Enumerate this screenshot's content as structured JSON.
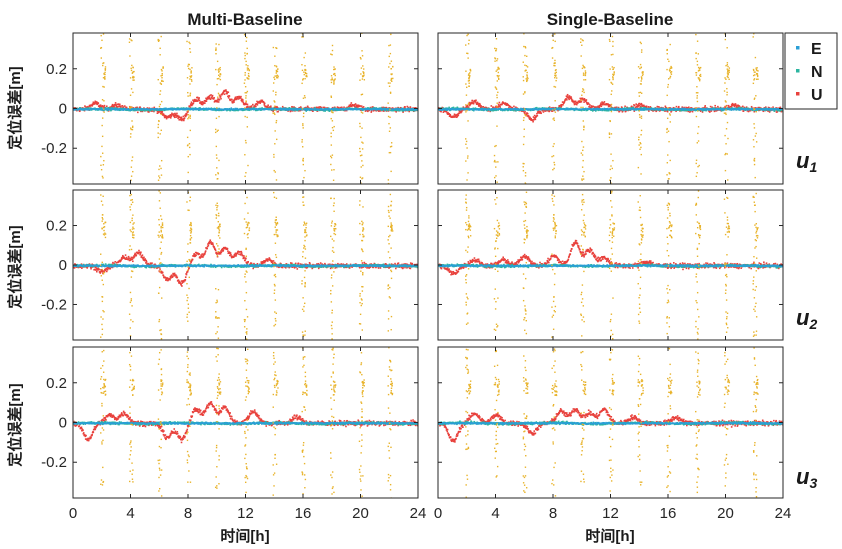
{
  "chart_data": {
    "type": "scatter",
    "column_titles": [
      "Multi-Baseline",
      "Single-Baseline"
    ],
    "ylabel": "定位误差[m]",
    "xlabel": "时间[h]",
    "row_labels": [
      {
        "base": "u",
        "sub": "1"
      },
      {
        "base": "u",
        "sub": "2"
      },
      {
        "base": "u",
        "sub": "3"
      }
    ],
    "xlim": [
      0,
      24
    ],
    "ylim": [
      -0.38,
      0.38
    ],
    "xticks": [
      0,
      4,
      8,
      12,
      16,
      20,
      24
    ],
    "yticks": [
      0.2,
      0,
      -0.2
    ],
    "ytick_labels": [
      "0.2",
      "0",
      "-0.2"
    ],
    "legend": {
      "position": "top-right",
      "entries": [
        {
          "label": "E",
          "color": "#2a9fd6"
        },
        {
          "label": "N",
          "color": "#2bb5a0"
        },
        {
          "label": "U",
          "color": "#e8413c"
        }
      ]
    },
    "spike_color": "#e8b32a",
    "spike_hours": [
      2,
      4,
      6,
      8,
      10,
      12,
      14,
      16,
      18,
      20,
      22
    ],
    "series": [
      {
        "name": "E",
        "values_summary": "approximately 0 ± 0.01 m throughout 0–24 h"
      },
      {
        "name": "N",
        "values_summary": "approximately 0 ± 0.015 m throughout 0–24 h"
      },
      {
        "name": "U",
        "values_summary": "approximately 0 ± 0.05 m with excursions up to ±0.12 m around 6–12 h"
      }
    ],
    "panels": [
      {
        "row": 1,
        "column": "Multi-Baseline",
        "u_bumps": [
          [
            1.5,
            0.03
          ],
          [
            3.0,
            0.02
          ],
          [
            6.5,
            -0.04
          ],
          [
            7.5,
            -0.05
          ],
          [
            8.5,
            0.05
          ],
          [
            9.5,
            0.06
          ],
          [
            10.5,
            0.09
          ],
          [
            11.5,
            0.06
          ],
          [
            13,
            0.04
          ],
          [
            19.5,
            0.02
          ]
        ]
      },
      {
        "row": 1,
        "column": "Single-Baseline",
        "u_bumps": [
          [
            1.0,
            -0.04
          ],
          [
            2.5,
            0.04
          ],
          [
            4.5,
            0.03
          ],
          [
            6.5,
            -0.05
          ],
          [
            9.0,
            0.06
          ],
          [
            10.0,
            0.05
          ],
          [
            11.5,
            0.03
          ],
          [
            14,
            0.02
          ],
          [
            20.5,
            0.02
          ]
        ]
      },
      {
        "row": 2,
        "column": "Multi-Baseline",
        "u_bumps": [
          [
            2.0,
            -0.03
          ],
          [
            3.5,
            0.04
          ],
          [
            4.5,
            0.07
          ],
          [
            6.5,
            -0.07
          ],
          [
            7.5,
            -0.09
          ],
          [
            8.5,
            0.06
          ],
          [
            9.5,
            0.12
          ],
          [
            10.5,
            0.09
          ],
          [
            11.5,
            0.07
          ],
          [
            13.5,
            0.03
          ]
        ]
      },
      {
        "row": 2,
        "column": "Single-Baseline",
        "u_bumps": [
          [
            1.0,
            -0.04
          ],
          [
            2.5,
            0.03
          ],
          [
            4.5,
            0.03
          ],
          [
            6.0,
            0.05
          ],
          [
            8.0,
            0.05
          ],
          [
            9.5,
            0.12
          ],
          [
            10.5,
            0.08
          ],
          [
            11.5,
            0.04
          ],
          [
            14.5,
            0.02
          ]
        ]
      },
      {
        "row": 3,
        "column": "Multi-Baseline",
        "u_bumps": [
          [
            1.0,
            -0.08
          ],
          [
            2.5,
            0.04
          ],
          [
            3.5,
            0.05
          ],
          [
            6.5,
            -0.07
          ],
          [
            7.5,
            -0.08
          ],
          [
            8.5,
            0.07
          ],
          [
            9.5,
            0.1
          ],
          [
            10.5,
            0.08
          ],
          [
            12.5,
            0.06
          ],
          [
            15.5,
            0.03
          ]
        ]
      },
      {
        "row": 3,
        "column": "Single-Baseline",
        "u_bumps": [
          [
            1.0,
            -0.09
          ],
          [
            2.5,
            0.05
          ],
          [
            4.0,
            0.04
          ],
          [
            6.5,
            -0.05
          ],
          [
            8.5,
            0.06
          ],
          [
            9.5,
            0.07
          ],
          [
            10.5,
            0.05
          ],
          [
            11.5,
            0.07
          ],
          [
            13.5,
            0.03
          ],
          [
            16.5,
            0.03
          ]
        ]
      }
    ]
  }
}
